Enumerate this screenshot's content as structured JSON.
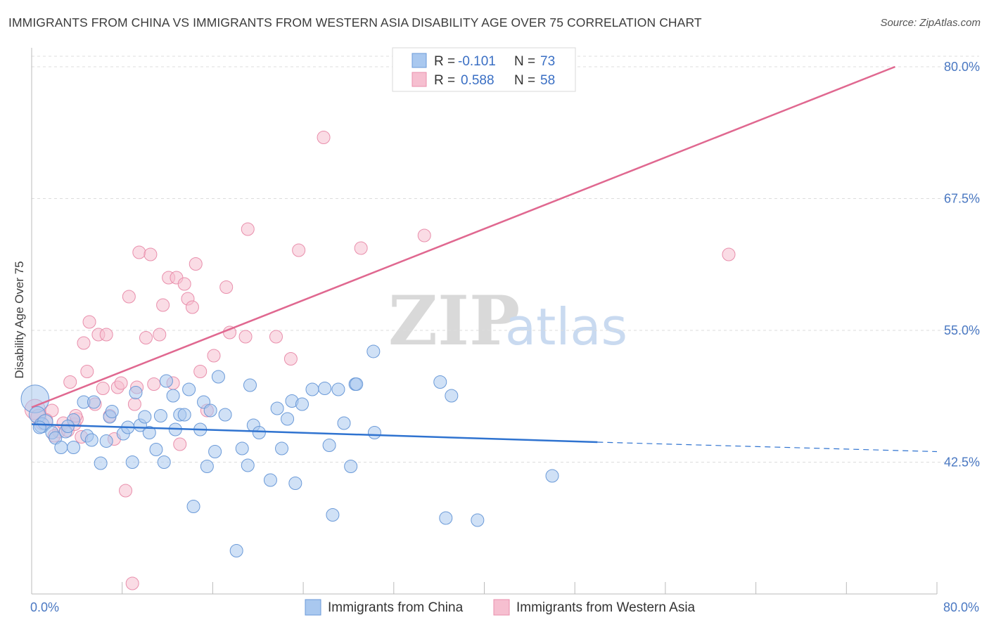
{
  "header": {
    "title": "IMMIGRANTS FROM CHINA VS IMMIGRANTS FROM WESTERN ASIA DISABILITY AGE OVER 75 CORRELATION CHART",
    "source": "Source: ZipAtlas.com"
  },
  "watermark": {
    "zip": "ZIP",
    "atlas": "atlas"
  },
  "legend_top": {
    "r_label": "R =",
    "n_label": "N =",
    "china": {
      "r": "-0.101",
      "n": "73"
    },
    "wasia": {
      "r": "0.588",
      "n": "58"
    }
  },
  "legend_bottom": {
    "china": "Immigrants from China",
    "wasia": "Immigrants from Western Asia"
  },
  "colors": {
    "china_fill": "#a9c8ef",
    "china_stroke": "#6b9ad8",
    "china_line": "#2f73d0",
    "wasia_fill": "#f6bfd0",
    "wasia_stroke": "#e98fac",
    "wasia_line": "#e06890",
    "tick_text": "#4a78c2",
    "grid": "#dddddd"
  },
  "chart_data": {
    "type": "scatter",
    "title": "IMMIGRANTS FROM CHINA VS IMMIGRANTS FROM WESTERN ASIA DISABILITY AGE OVER 75 CORRELATION CHART",
    "xlabel": "",
    "ylabel": "Disability Age Over 75",
    "xlim": [
      0,
      80
    ],
    "ylim": [
      30,
      81
    ],
    "x_ticks": [
      "0.0%",
      "80.0%"
    ],
    "y_ticks": [
      {
        "value": 42.5,
        "label": "42.5%"
      },
      {
        "value": 55.0,
        "label": "55.0%"
      },
      {
        "value": 67.5,
        "label": "67.5%"
      },
      {
        "value": 80.0,
        "label": "80.0%"
      }
    ],
    "grid": true,
    "legend_position": "top-center",
    "series": [
      {
        "name": "Immigrants from China",
        "trend": {
          "x": [
            0,
            50
          ],
          "y": [
            46.1,
            44.4
          ],
          "dashed_to": [
            80,
            43.5
          ]
        },
        "points": [
          [
            0.3,
            48.5,
            2.2
          ],
          [
            0.5,
            47.0,
            1.3
          ],
          [
            0.9,
            46.0,
            1.2
          ],
          [
            1.2,
            46.3,
            1.2
          ],
          [
            1.8,
            45.3,
            1.0
          ],
          [
            2.1,
            44.8,
            1.0
          ],
          [
            2.6,
            43.9,
            1.0
          ],
          [
            3.0,
            45.4,
            1.0
          ],
          [
            3.7,
            43.9,
            1.0
          ],
          [
            3.7,
            46.5,
            1.0
          ],
          [
            4.6,
            48.2,
            1.0
          ],
          [
            4.9,
            45.0,
            1.0
          ],
          [
            5.3,
            44.6,
            1.0
          ],
          [
            5.5,
            48.2,
            1.0
          ],
          [
            6.1,
            42.4,
            1.0
          ],
          [
            6.6,
            44.5,
            1.0
          ],
          [
            6.9,
            46.8,
            1.0
          ],
          [
            7.1,
            47.3,
            1.0
          ],
          [
            8.1,
            45.2,
            1.0
          ],
          [
            8.5,
            45.8,
            1.0
          ],
          [
            8.9,
            42.5,
            1.0
          ],
          [
            9.2,
            49.1,
            1.0
          ],
          [
            9.6,
            46.0,
            1.0
          ],
          [
            10.0,
            46.8,
            1.0
          ],
          [
            10.4,
            45.3,
            1.0
          ],
          [
            11.0,
            43.7,
            1.0
          ],
          [
            11.4,
            46.9,
            1.0
          ],
          [
            11.7,
            42.5,
            1.0
          ],
          [
            11.9,
            50.2,
            1.0
          ],
          [
            12.5,
            48.8,
            1.0
          ],
          [
            12.7,
            45.6,
            1.0
          ],
          [
            13.1,
            47.0,
            1.0
          ],
          [
            13.5,
            47.0,
            1.0
          ],
          [
            13.9,
            49.4,
            1.0
          ],
          [
            14.3,
            38.3,
            1.0
          ],
          [
            14.9,
            45.6,
            1.0
          ],
          [
            15.2,
            48.2,
            1.0
          ],
          [
            15.5,
            42.1,
            1.0
          ],
          [
            15.8,
            47.4,
            1.0
          ],
          [
            16.2,
            43.5,
            1.0
          ],
          [
            16.5,
            50.6,
            1.0
          ],
          [
            17.1,
            47.0,
            1.0
          ],
          [
            18.1,
            34.1,
            1.0
          ],
          [
            18.6,
            43.8,
            1.0
          ],
          [
            19.1,
            42.2,
            1.0
          ],
          [
            19.3,
            49.8,
            1.0
          ],
          [
            19.6,
            46.0,
            1.0
          ],
          [
            20.1,
            45.3,
            1.0
          ],
          [
            21.1,
            40.8,
            1.0
          ],
          [
            21.7,
            47.6,
            1.0
          ],
          [
            22.1,
            43.8,
            1.0
          ],
          [
            22.6,
            46.6,
            1.0
          ],
          [
            23.0,
            48.3,
            1.0
          ],
          [
            23.3,
            40.5,
            1.0
          ],
          [
            23.9,
            48.0,
            1.0
          ],
          [
            24.8,
            49.4,
            1.0
          ],
          [
            25.9,
            49.5,
            1.0
          ],
          [
            26.3,
            44.1,
            1.0
          ],
          [
            26.6,
            37.5,
            1.0
          ],
          [
            27.1,
            49.4,
            1.0
          ],
          [
            27.6,
            46.2,
            1.0
          ],
          [
            28.2,
            42.1,
            1.0
          ],
          [
            28.6,
            49.9,
            1.0
          ],
          [
            28.7,
            49.9,
            1.0
          ],
          [
            30.2,
            53.0,
            1.0
          ],
          [
            30.3,
            45.3,
            1.0
          ],
          [
            36.1,
            50.1,
            1.0
          ],
          [
            36.6,
            37.2,
            1.0
          ],
          [
            37.1,
            48.8,
            1.0
          ],
          [
            39.4,
            37.0,
            1.0
          ],
          [
            46.0,
            41.2,
            1.0
          ],
          [
            0.7,
            45.8,
            1.0
          ],
          [
            3.2,
            45.9,
            1.0
          ]
        ]
      },
      {
        "name": "Immigrants from Western Asia",
        "trend": {
          "x": [
            0,
            76.3
          ],
          "y": [
            47.7,
            80.0
          ]
        },
        "points": [
          [
            0.3,
            47.5,
            1.6
          ],
          [
            0.6,
            46.8,
            1.2
          ],
          [
            0.9,
            46.2,
            1.0
          ],
          [
            1.8,
            47.4,
            1.0
          ],
          [
            2.4,
            45.4,
            1.0
          ],
          [
            2.8,
            46.2,
            1.0
          ],
          [
            3.2,
            45.5,
            1.0
          ],
          [
            3.4,
            50.1,
            1.0
          ],
          [
            3.8,
            46.1,
            1.0
          ],
          [
            4.0,
            46.6,
            1.0
          ],
          [
            4.4,
            44.9,
            1.0
          ],
          [
            4.6,
            53.8,
            1.0
          ],
          [
            4.9,
            51.1,
            1.0
          ],
          [
            5.1,
            55.8,
            1.0
          ],
          [
            5.6,
            48.0,
            1.0
          ],
          [
            5.9,
            54.6,
            1.0
          ],
          [
            6.3,
            49.5,
            1.0
          ],
          [
            6.6,
            54.6,
            1.0
          ],
          [
            6.9,
            46.9,
            1.0
          ],
          [
            7.3,
            44.7,
            1.0
          ],
          [
            7.6,
            49.6,
            1.0
          ],
          [
            7.9,
            50.0,
            1.0
          ],
          [
            8.3,
            39.8,
            1.0
          ],
          [
            8.6,
            58.2,
            1.0
          ],
          [
            8.9,
            31.0,
            1.0
          ],
          [
            9.1,
            48.0,
            1.0
          ],
          [
            9.5,
            62.4,
            1.0
          ],
          [
            10.1,
            54.3,
            1.0
          ],
          [
            10.5,
            62.2,
            1.0
          ],
          [
            10.8,
            49.9,
            1.0
          ],
          [
            11.3,
            54.6,
            1.0
          ],
          [
            11.6,
            57.4,
            1.0
          ],
          [
            12.1,
            60.0,
            1.0
          ],
          [
            12.5,
            50.0,
            1.0
          ],
          [
            12.8,
            60.0,
            1.0
          ],
          [
            13.1,
            44.2,
            1.0
          ],
          [
            13.5,
            59.4,
            1.0
          ],
          [
            13.8,
            58.0,
            1.0
          ],
          [
            14.2,
            57.2,
            1.0
          ],
          [
            14.5,
            61.3,
            1.0
          ],
          [
            14.9,
            51.1,
            1.0
          ],
          [
            15.5,
            47.4,
            1.0
          ],
          [
            16.1,
            52.6,
            1.0
          ],
          [
            17.2,
            59.1,
            1.0
          ],
          [
            17.5,
            54.8,
            1.0
          ],
          [
            18.9,
            54.4,
            1.0
          ],
          [
            19.1,
            64.6,
            1.0
          ],
          [
            21.6,
            54.4,
            1.0
          ],
          [
            22.9,
            52.3,
            1.0
          ],
          [
            23.6,
            62.6,
            1.0
          ],
          [
            25.8,
            73.3,
            1.0
          ],
          [
            29.1,
            62.8,
            1.0
          ],
          [
            34.7,
            64.0,
            1.0
          ],
          [
            61.6,
            62.2,
            1.0
          ],
          [
            1.3,
            46.5,
            1.0
          ],
          [
            2.0,
            45.0,
            1.0
          ],
          [
            3.9,
            46.9,
            1.0
          ],
          [
            9.3,
            49.6,
            1.0
          ]
        ]
      }
    ]
  }
}
